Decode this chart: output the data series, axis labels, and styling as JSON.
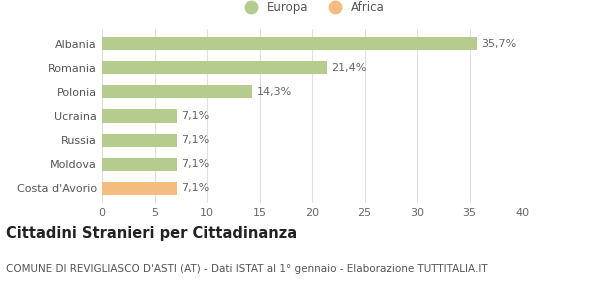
{
  "categories": [
    "Albania",
    "Romania",
    "Polonia",
    "Ucraina",
    "Russia",
    "Moldova",
    "Costa d'Avorio"
  ],
  "values": [
    35.7,
    21.4,
    14.3,
    7.1,
    7.1,
    7.1,
    7.1
  ],
  "labels": [
    "35,7%",
    "21,4%",
    "14,3%",
    "7,1%",
    "7,1%",
    "7,1%",
    "7,1%"
  ],
  "bar_colors": [
    "#b5cc8e",
    "#b5cc8e",
    "#b5cc8e",
    "#b5cc8e",
    "#b5cc8e",
    "#b5cc8e",
    "#f5bc80"
  ],
  "legend_europa_color": "#b5cc8e",
  "legend_africa_color": "#f5bc80",
  "xlim": [
    0,
    40
  ],
  "xticks": [
    0,
    5,
    10,
    15,
    20,
    25,
    30,
    35,
    40
  ],
  "title": "Cittadini Stranieri per Cittadinanza",
  "subtitle": "COMUNE DI REVIGLIASCO D'ASTI (AT) - Dati ISTAT al 1° gennaio - Elaborazione TUTTITALIA.IT",
  "background_color": "#ffffff",
  "grid_color": "#e0e0e0",
  "bar_height": 0.55,
  "label_fontsize": 8,
  "tick_fontsize": 8,
  "title_fontsize": 10.5,
  "subtitle_fontsize": 7.5
}
